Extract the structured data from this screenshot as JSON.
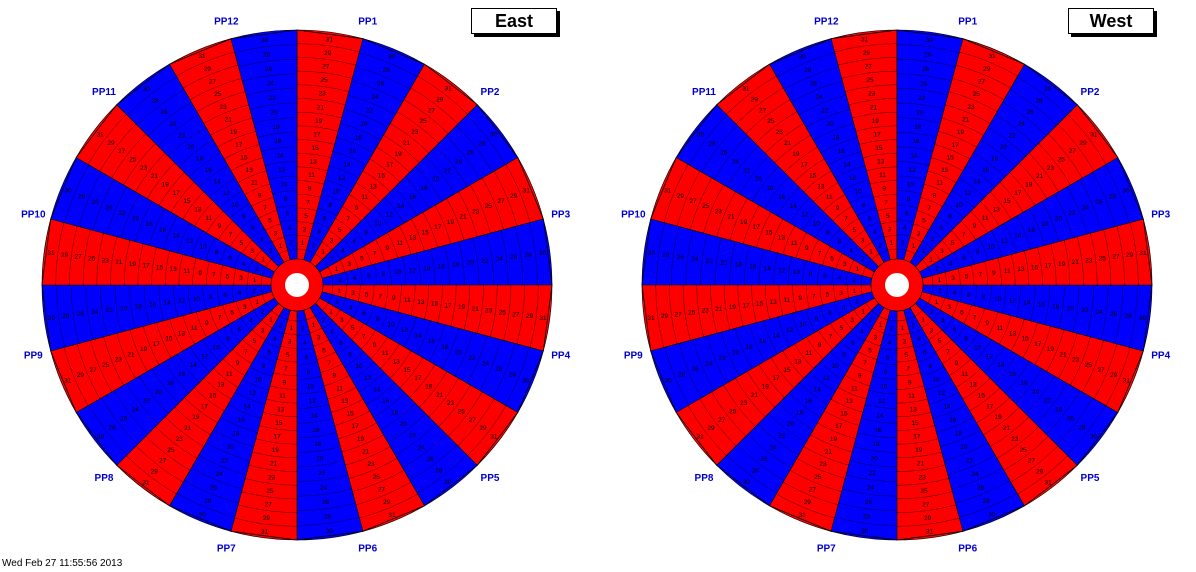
{
  "colors": {
    "red": "#ff0000",
    "blue": "#0000ff",
    "label": "#0000cc",
    "line": "#000000"
  },
  "east": {
    "title": "East",
    "sector_labels": [
      "PP1",
      "PP2",
      "PP3",
      "PP4",
      "PP5",
      "PP6",
      "PP7",
      "PP8",
      "PP9",
      "PP10",
      "PP11",
      "PP12"
    ]
  },
  "west": {
    "title": "West",
    "sector_labels": [
      "PP12",
      "PP11",
      "PP10",
      "PP9",
      "PP8",
      "PP7",
      "PP6",
      "PP5",
      "PP4",
      "PP3",
      "PP2",
      "PP1"
    ]
  },
  "rows": {
    "odd": [
      31,
      29,
      27,
      25,
      23,
      21,
      19,
      17,
      15,
      13,
      11,
      9,
      7,
      5,
      3,
      1
    ],
    "even": [
      30,
      28,
      26,
      24,
      22,
      20,
      18,
      16,
      14,
      12,
      10,
      8,
      6,
      4,
      2
    ]
  },
  "footer": "Wed Feb 27 11:55:56 2013"
}
